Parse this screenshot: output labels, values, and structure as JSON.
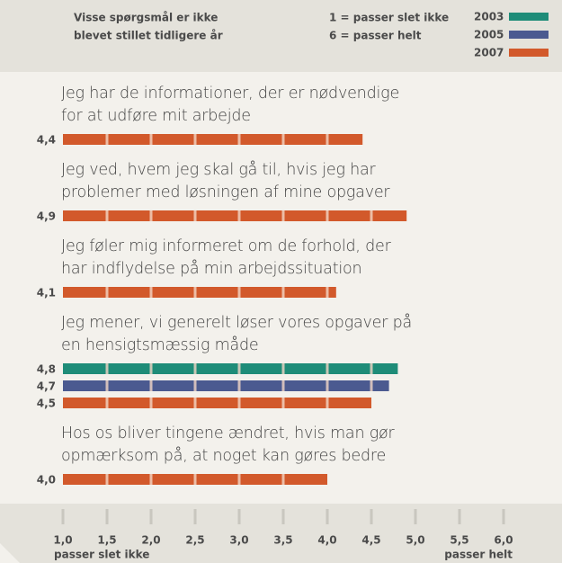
{
  "chart_data": {
    "type": "bar",
    "orientation": "horizontal",
    "note": [
      "Visse spørgsmål er ikke",
      "blevet stillet tidligere år"
    ],
    "scale_notes": [
      "1 = passer slet ikke",
      "6 = passer helt"
    ],
    "categories": [
      "Jeg har de informationer, der er nødvendige for at udføre mit arbejde",
      "Jeg ved, hvem jeg skal gå til, hvis jeg har problemer med løsningen af mine opgaver",
      "Jeg føler mig informeret om de forhold, der har indflydelse på min arbejdssituation",
      "Jeg mener, vi generelt løser vores opgaver på en hensigtsmæssig måde",
      "Hos os bliver tingene ændret, hvis man gør opmærksom på, at noget kan gøres bedre"
    ],
    "series": [
      {
        "name": "2003",
        "color": "#1e8c78",
        "values": [
          null,
          null,
          null,
          4.8,
          null
        ],
        "value_labels": [
          null,
          null,
          null,
          "4,8",
          null
        ]
      },
      {
        "name": "2005",
        "color": "#4b5a90",
        "values": [
          null,
          null,
          null,
          4.7,
          null
        ],
        "value_labels": [
          null,
          null,
          null,
          "4,7",
          null
        ]
      },
      {
        "name": "2007",
        "color": "#d2592b",
        "values": [
          4.4,
          4.9,
          4.1,
          4.5,
          4.0
        ],
        "value_labels": [
          "4,4",
          "4,9",
          "4,1",
          "4,5",
          "4,0"
        ]
      }
    ],
    "xlim": [
      1,
      6
    ],
    "xticks": [
      {
        "value": 1,
        "label": "1,0"
      },
      {
        "value": 1.5,
        "label": "1,5"
      },
      {
        "value": 2,
        "label": "2,0"
      },
      {
        "value": 2.5,
        "label": "2,5"
      },
      {
        "value": 3,
        "label": "3,0"
      },
      {
        "value": 3.5,
        "label": "3,5"
      },
      {
        "value": 4,
        "label": "4,0"
      },
      {
        "value": 4.5,
        "label": "4,5"
      },
      {
        "value": 5,
        "label": "5,0"
      },
      {
        "value": 5.5,
        "label": "5,5"
      },
      {
        "value": 6,
        "label": "6,0"
      }
    ],
    "xlabels": [
      "passer slet ikke",
      "passer helt"
    ],
    "legend": "top-right"
  }
}
